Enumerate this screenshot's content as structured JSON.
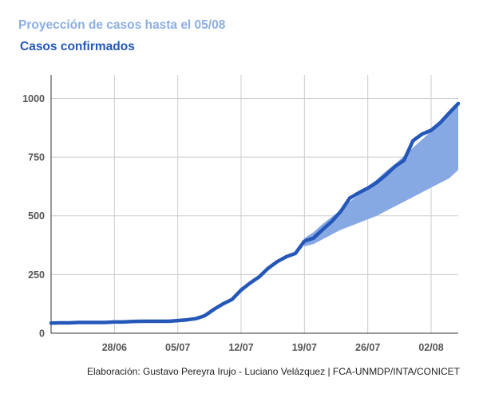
{
  "chart_data": {
    "type": "area",
    "title": "Proyección de casos hasta el 05/08",
    "subtitle": "Casos confirmados",
    "footer": "Elaboración: Gustavo Pereyra Irujo - Luciano Velázquez | FCA-UNMDP/INTA/CONICET",
    "x_ticks": [
      "28/06",
      "05/07",
      "12/07",
      "19/07",
      "26/07",
      "02/08"
    ],
    "x_range": [
      "2020-06-21",
      "2020-08-05"
    ],
    "ylim": [
      0,
      1100
    ],
    "y_ticks": [
      0,
      250,
      500,
      750,
      1000
    ],
    "grid": true,
    "colors": {
      "series": "#2457b8",
      "band": "#86a9e3",
      "grid": "#cccccc",
      "axis": "#333333",
      "title": "#8caee2",
      "subtitle": "#2457b8"
    },
    "series": [
      {
        "x": [
          "2020-06-21",
          "2020-06-22",
          "2020-06-23",
          "2020-06-24",
          "2020-06-25",
          "2020-06-26",
          "2020-06-27",
          "2020-06-28",
          "2020-06-29",
          "2020-06-30",
          "2020-07-01",
          "2020-07-02",
          "2020-07-03",
          "2020-07-04",
          "2020-07-05",
          "2020-07-06",
          "2020-07-07",
          "2020-07-08",
          "2020-07-09",
          "2020-07-10",
          "2020-07-11",
          "2020-07-12",
          "2020-07-13",
          "2020-07-14",
          "2020-07-15",
          "2020-07-16",
          "2020-07-17",
          "2020-07-18",
          "2020-07-19",
          "2020-07-20",
          "2020-07-21",
          "2020-07-22",
          "2020-07-23",
          "2020-07-24",
          "2020-07-25",
          "2020-07-26",
          "2020-07-27",
          "2020-07-28",
          "2020-07-29",
          "2020-07-30",
          "2020-07-31",
          "2020-08-01",
          "2020-08-02",
          "2020-08-03",
          "2020-08-04",
          "2020-08-05"
        ],
        "values": [
          43,
          44,
          44,
          46,
          46,
          46,
          46,
          48,
          48,
          50,
          51,
          51,
          51,
          51,
          54,
          57,
          62,
          75,
          102,
          125,
          144,
          184,
          214,
          240,
          277,
          305,
          326,
          340,
          392,
          405,
          441,
          475,
          518,
          575,
          598,
          618,
          642,
          674,
          710,
          736,
          820,
          848,
          864,
          896,
          938,
          978
        ]
      }
    ],
    "band": {
      "x": [
        "2020-07-19",
        "2020-07-20",
        "2020-07-21",
        "2020-07-22",
        "2020-07-23",
        "2020-07-24",
        "2020-07-25",
        "2020-07-26",
        "2020-07-27",
        "2020-07-28",
        "2020-07-29",
        "2020-07-30",
        "2020-07-31",
        "2020-08-01",
        "2020-08-02",
        "2020-08-03",
        "2020-08-04",
        "2020-08-05"
      ],
      "lower": [
        370,
        380,
        400,
        420,
        440,
        455,
        470,
        485,
        500,
        520,
        540,
        560,
        580,
        600,
        620,
        640,
        660,
        695
      ],
      "upper": [
        405,
        430,
        465,
        495,
        525,
        560,
        590,
        625,
        655,
        690,
        720,
        755,
        790,
        825,
        860,
        895,
        930,
        975
      ]
    }
  }
}
